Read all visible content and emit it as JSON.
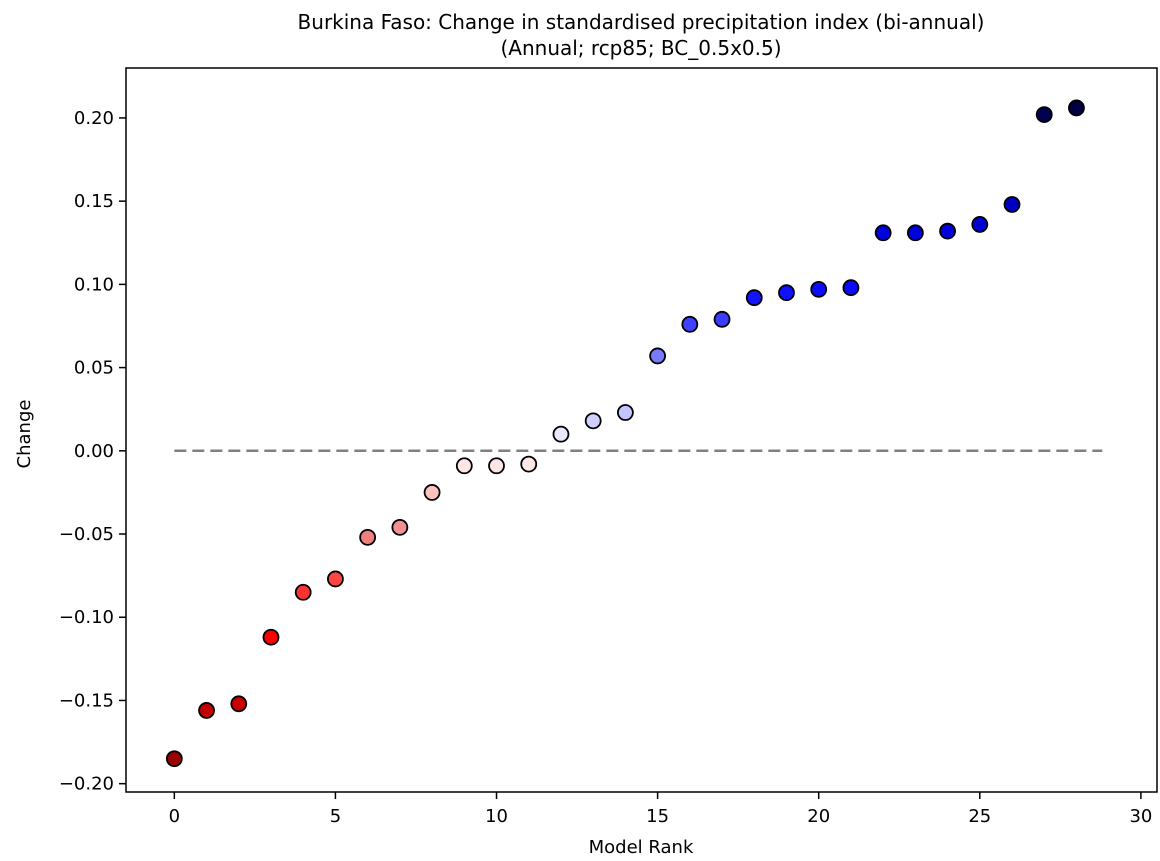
{
  "chart_data": {
    "type": "scatter",
    "title": "Burkina Faso: Change in standardised precipitation index (bi-annual)",
    "subtitle": "(Annual; rcp85; BC_0.5x0.5)",
    "xlabel": "Model Rank",
    "ylabel": "Change",
    "xlim": [
      -1.5,
      30.5
    ],
    "ylim": [
      -0.205,
      0.23
    ],
    "x_ticks": [
      0,
      5,
      10,
      15,
      20,
      25,
      30
    ],
    "x_tick_labels": [
      "0",
      "5",
      "10",
      "15",
      "20",
      "25",
      "30"
    ],
    "y_ticks": [
      -0.2,
      -0.15,
      -0.1,
      -0.05,
      0.0,
      0.05,
      0.1,
      0.15,
      0.2
    ],
    "y_tick_labels": [
      "−0.20",
      "−0.15",
      "−0.10",
      "−0.05",
      "0.00",
      "0.05",
      "0.10",
      "0.15",
      "0.20"
    ],
    "grid": false,
    "reference_line": {
      "y": 0.0,
      "x_range": [
        0,
        28.8
      ],
      "color": "#808080",
      "style": "dashed"
    },
    "points": [
      {
        "x": 0,
        "y": -0.185,
        "color": "#990000"
      },
      {
        "x": 1,
        "y": -0.156,
        "color": "#c00000"
      },
      {
        "x": 2,
        "y": -0.152,
        "color": "#c80000"
      },
      {
        "x": 3,
        "y": -0.112,
        "color": "#ff0000"
      },
      {
        "x": 4,
        "y": -0.085,
        "color": "#ff3333"
      },
      {
        "x": 5,
        "y": -0.077,
        "color": "#ff4444"
      },
      {
        "x": 6,
        "y": -0.052,
        "color": "#f08080"
      },
      {
        "x": 7,
        "y": -0.046,
        "color": "#f59090"
      },
      {
        "x": 8,
        "y": -0.025,
        "color": "#ffc0c0"
      },
      {
        "x": 9,
        "y": -0.009,
        "color": "#ffe6e6"
      },
      {
        "x": 10,
        "y": -0.009,
        "color": "#ffe6e6"
      },
      {
        "x": 11,
        "y": -0.008,
        "color": "#ffe8e8"
      },
      {
        "x": 12,
        "y": 0.01,
        "color": "#e8e8ff"
      },
      {
        "x": 13,
        "y": 0.018,
        "color": "#d0d0ff"
      },
      {
        "x": 14,
        "y": 0.023,
        "color": "#c4c4ff"
      },
      {
        "x": 15,
        "y": 0.057,
        "color": "#7a7aff"
      },
      {
        "x": 16,
        "y": 0.076,
        "color": "#4040ff"
      },
      {
        "x": 17,
        "y": 0.079,
        "color": "#3c3cff"
      },
      {
        "x": 18,
        "y": 0.092,
        "color": "#1414ff"
      },
      {
        "x": 19,
        "y": 0.095,
        "color": "#1010ff"
      },
      {
        "x": 20,
        "y": 0.097,
        "color": "#0c0cff"
      },
      {
        "x": 21,
        "y": 0.098,
        "color": "#0a0aff"
      },
      {
        "x": 22,
        "y": 0.131,
        "color": "#0000dd"
      },
      {
        "x": 23,
        "y": 0.131,
        "color": "#0000dd"
      },
      {
        "x": 24,
        "y": 0.132,
        "color": "#0000dd"
      },
      {
        "x": 25,
        "y": 0.136,
        "color": "#0000d0"
      },
      {
        "x": 26,
        "y": 0.148,
        "color": "#0000c0"
      },
      {
        "x": 27,
        "y": 0.202,
        "color": "#000050"
      },
      {
        "x": 28,
        "y": 0.206,
        "color": "#000040"
      }
    ]
  }
}
